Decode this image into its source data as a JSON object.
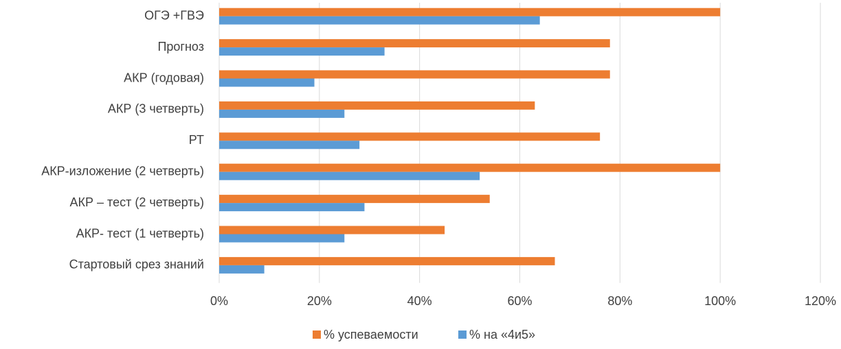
{
  "chart_data": {
    "type": "bar",
    "orientation": "horizontal",
    "categories": [
      "ОГЭ +ГВЭ",
      "Прогноз",
      "АКР (годовая)",
      "АКР (3 четверть)",
      "РТ",
      "АКР-изложение (2 четверть)",
      "АКР – тест (2 четверть)",
      "АКР- тест (1 четверть)",
      "Стартовый срез знаний"
    ],
    "series": [
      {
        "name": "% успеваемости",
        "color": "#ED7D31",
        "values": [
          100,
          78,
          78,
          63,
          76,
          100,
          54,
          45,
          67
        ]
      },
      {
        "name": "% на «4и5»",
        "color": "#5B9BD5",
        "values": [
          64,
          33,
          19,
          25,
          28,
          52,
          29,
          25,
          9
        ]
      }
    ],
    "x_ticks": [
      "0%",
      "20%",
      "40%",
      "60%",
      "80%",
      "100%",
      "120%"
    ],
    "xlim": [
      0,
      120
    ],
    "grid": true,
    "legend_position": "bottom",
    "title": "",
    "xlabel": "",
    "ylabel": ""
  }
}
